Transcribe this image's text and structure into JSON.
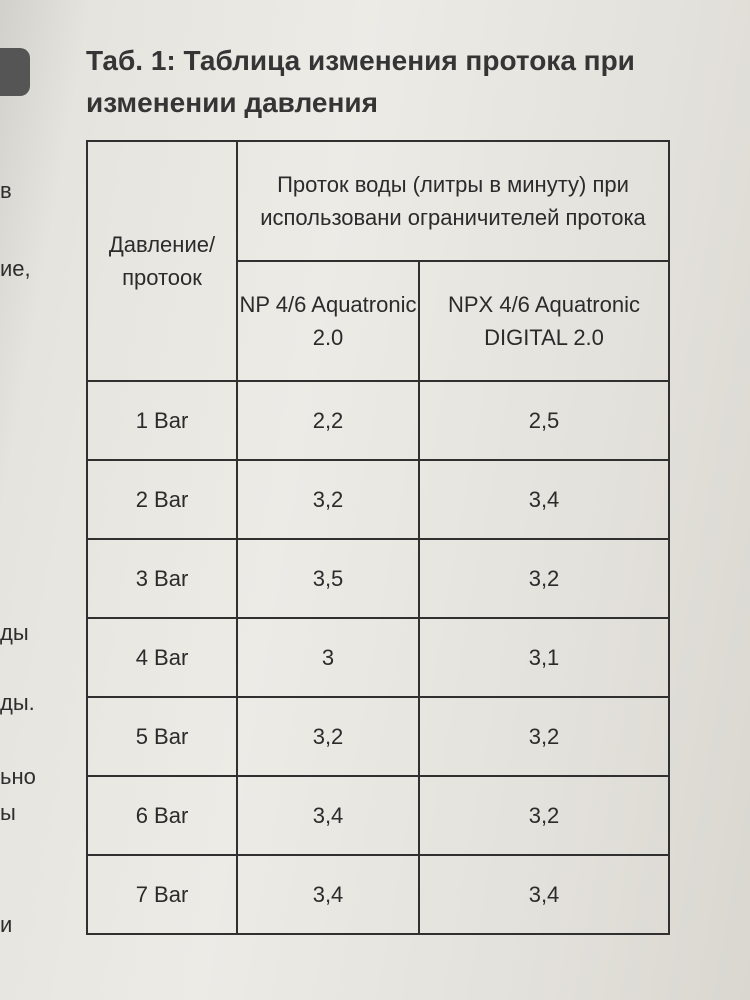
{
  "title": "Таб. 1: Таблица изменения протока при изменении давления",
  "table": {
    "header_pressure": "Давление/ протоок",
    "header_flow_group": "Проток воды (литры в минуту) при использовани ограничителей протока",
    "col_np": "NP 4/6 Aquatronic 2.0",
    "col_npx": "NPX 4/6 Aquatronic DIGITAL 2.0",
    "rows": [
      {
        "pressure": "1 Bar",
        "np": "2,2",
        "npx": "2,5"
      },
      {
        "pressure": "2 Bar",
        "np": "3,2",
        "npx": "3,4"
      },
      {
        "pressure": "3 Bar",
        "np": "3,5",
        "npx": "3,2"
      },
      {
        "pressure": "4 Bar",
        "np": "3",
        "npx": "3,1"
      },
      {
        "pressure": "5 Bar",
        "np": "3,2",
        "npx": "3,2"
      },
      {
        "pressure": "6 Bar",
        "np": "3,4",
        "npx": "3,2"
      },
      {
        "pressure": "7 Bar",
        "np": "3,4",
        "npx": "3,4"
      }
    ]
  },
  "margin_fragments": [
    "в",
    "ие,",
    "ды",
    "ды.",
    "ьно",
    "ы",
    "и"
  ]
}
